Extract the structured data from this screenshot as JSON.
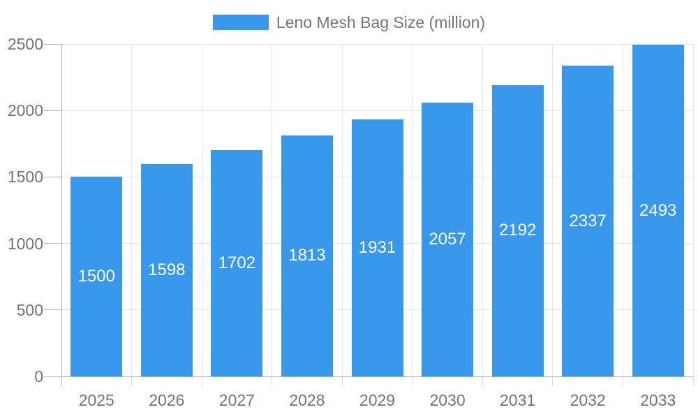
{
  "legend": {
    "label": "Leno Mesh Bag Size (million)"
  },
  "chart_data": {
    "type": "bar",
    "title": "Leno Mesh Bag Size (million)",
    "categories": [
      "2025",
      "2026",
      "2027",
      "2028",
      "2029",
      "2030",
      "2031",
      "2032",
      "2033"
    ],
    "values": [
      1500,
      1598,
      1702,
      1813,
      1931,
      2057,
      2192,
      2337,
      2493
    ],
    "xlabel": "",
    "ylabel": "",
    "ylim": [
      0,
      2500
    ],
    "yticks": [
      0,
      500,
      1000,
      1500,
      2000,
      2500
    ],
    "grid": true,
    "legend_position": "top",
    "bar_labels": "inside-centered-white"
  },
  "colors": {
    "bar": "#3899EC",
    "bar_label": "#FFFFFF",
    "axis_text": "#757575",
    "grid_line": "#E6E6E6",
    "axis_line": "#B3B3B3",
    "minor_tick": "#D9D9D9",
    "background": "#FFFFFF"
  }
}
